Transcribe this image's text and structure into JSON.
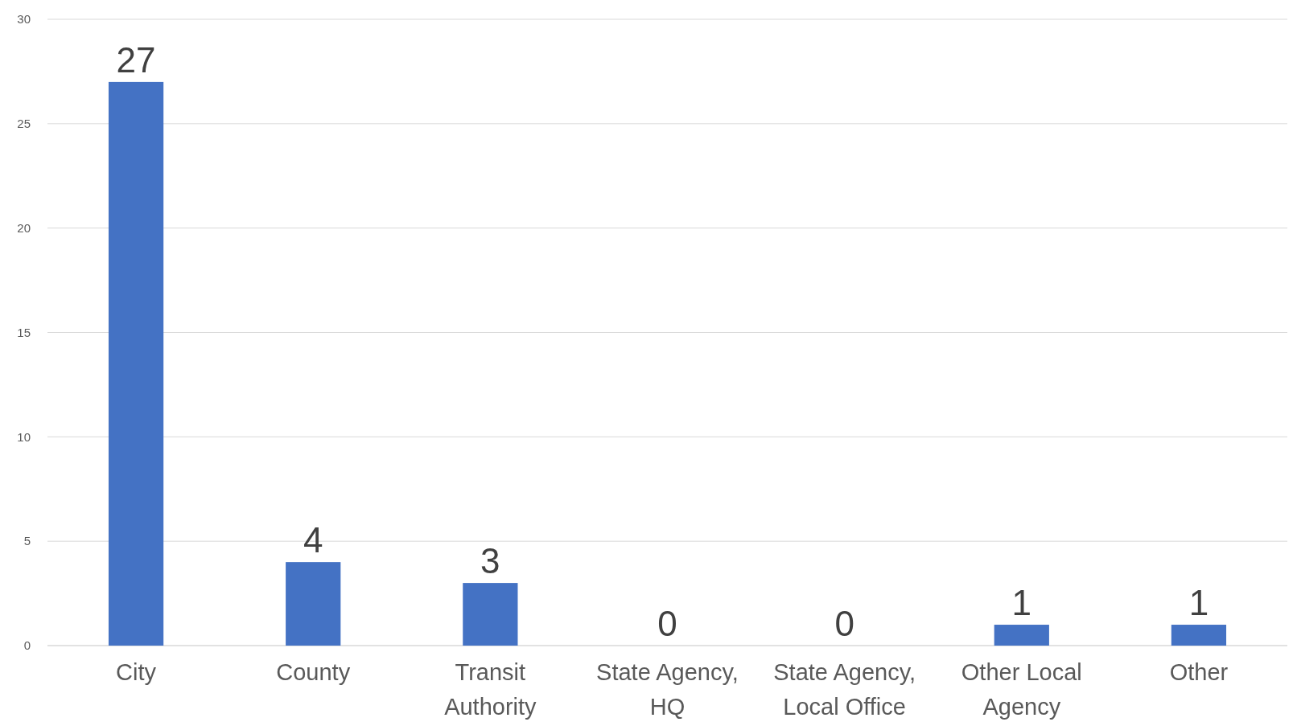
{
  "chart_data": {
    "type": "bar",
    "categories": [
      "City",
      "County",
      "Transit Authority",
      "State Agency, HQ",
      "State Agency, Local Office",
      "Other Local Agency",
      "Other"
    ],
    "values": [
      27,
      4,
      3,
      0,
      0,
      1,
      1
    ],
    "color": "#4472c4",
    "ylim": [
      0,
      30
    ],
    "yticks": [
      0,
      5,
      10,
      15,
      20,
      25,
      30
    ],
    "grid": "y",
    "data_labels": true
  }
}
